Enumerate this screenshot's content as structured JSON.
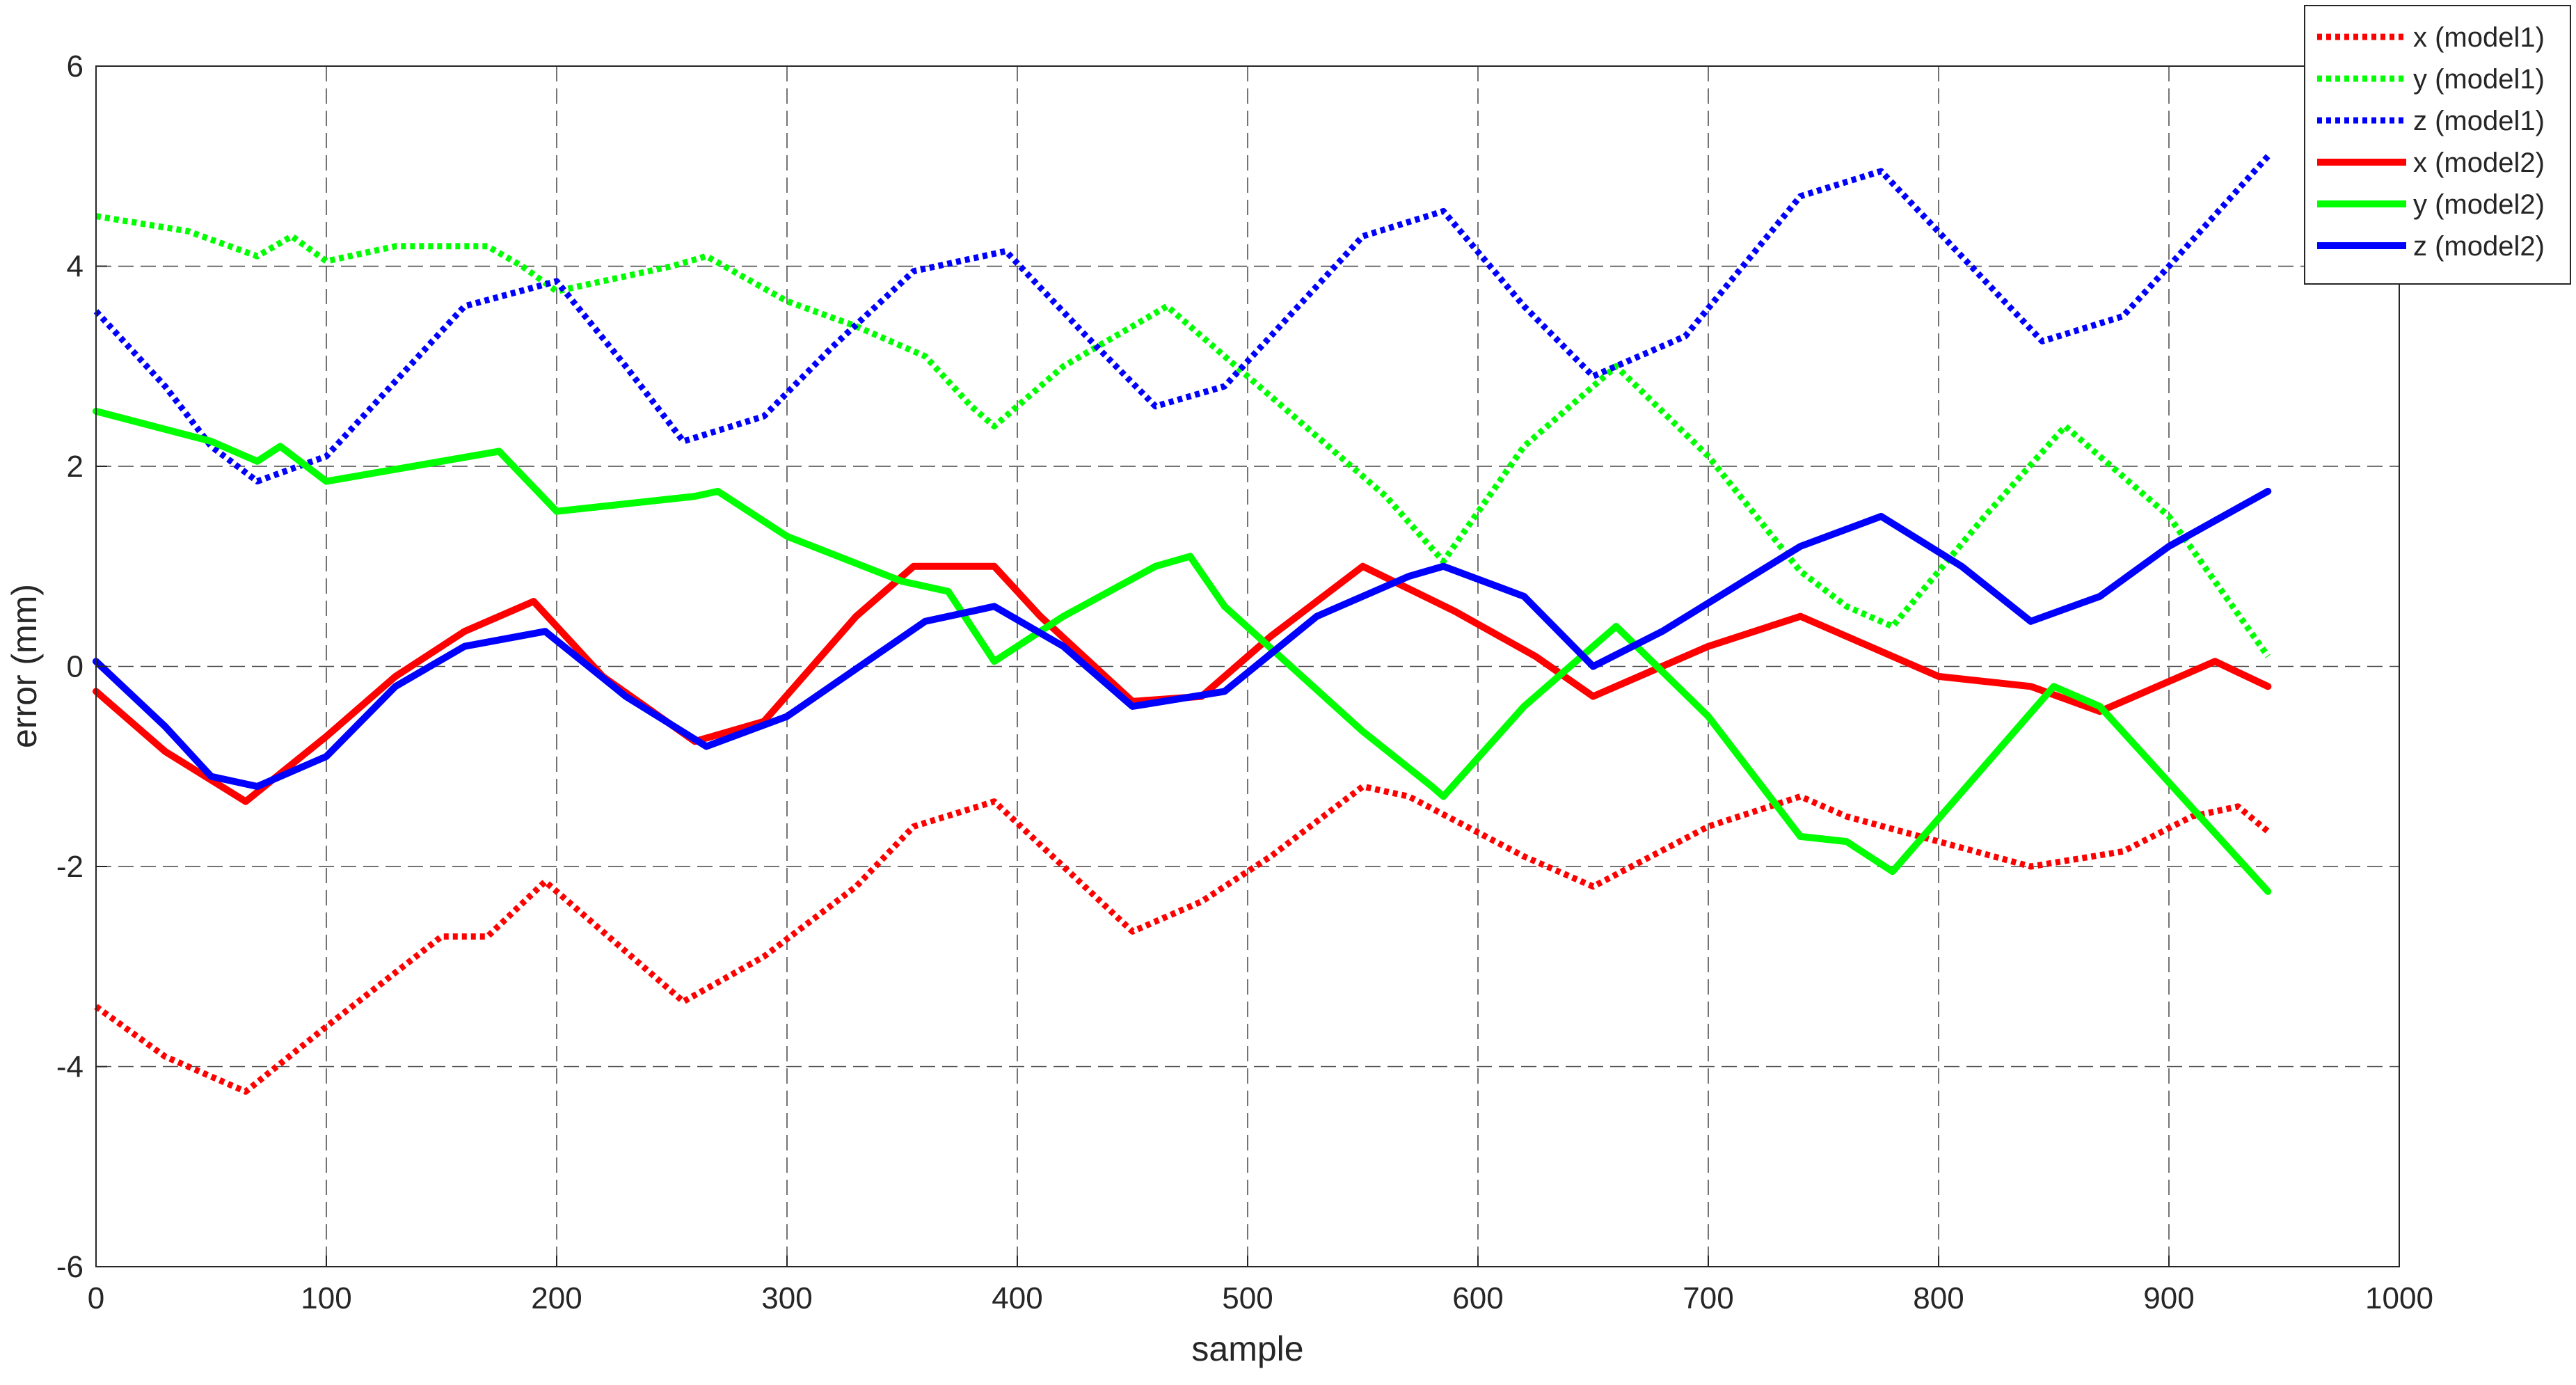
{
  "chart_data": {
    "type": "line",
    "title": "",
    "xlabel": "sample",
    "ylabel": "error (mm)",
    "xlim": [
      0,
      1000
    ],
    "ylim": [
      -6,
      6
    ],
    "xticks": [
      0,
      100,
      200,
      300,
      400,
      500,
      600,
      700,
      800,
      900,
      1000
    ],
    "yticks": [
      -6,
      -4,
      -2,
      0,
      2,
      4,
      6
    ],
    "xtick_labels": [
      "0",
      "100",
      "200",
      "300",
      "400",
      "500",
      "600",
      "700",
      "800",
      "900",
      "1000"
    ],
    "ytick_labels": [
      "-6",
      "-4",
      "-2",
      "0",
      "2",
      "4",
      "6"
    ],
    "grid": true,
    "legend_position": "top-right, outside plot area",
    "series": [
      {
        "name": "x (model1)",
        "color": "#ff0000",
        "style": "dotted",
        "x": [
          0,
          30,
          65,
          100,
          150,
          170,
          195,
          255,
          290,
          330,
          355,
          390,
          420,
          450,
          480,
          510,
          550,
          570,
          620,
          650,
          700,
          740,
          760,
          800,
          840,
          880,
          910,
          930,
          943
        ],
        "y": [
          -3.4,
          -3.9,
          -4.25,
          -3.6,
          -2.7,
          -2.7,
          -2.15,
          -3.35,
          -2.9,
          -2.2,
          -1.6,
          -1.35,
          -2.0,
          -2.65,
          -2.35,
          -1.9,
          -1.2,
          -1.3,
          -1.9,
          -2.2,
          -1.6,
          -1.3,
          -1.5,
          -1.75,
          -2.0,
          -1.85,
          -1.5,
          -1.4,
          -1.65
        ]
      },
      {
        "name": "y (model1)",
        "color": "#00ff00",
        "style": "dotted",
        "x": [
          0,
          40,
          70,
          85,
          100,
          130,
          170,
          185,
          200,
          250,
          265,
          300,
          330,
          360,
          380,
          390,
          420,
          465,
          490,
          540,
          560,
          585,
          620,
          660,
          700,
          740,
          760,
          780,
          820,
          855,
          900,
          943
        ],
        "y": [
          4.5,
          4.35,
          4.1,
          4.3,
          4.05,
          4.2,
          4.2,
          4.0,
          3.75,
          4.0,
          4.1,
          3.65,
          3.4,
          3.1,
          2.6,
          2.4,
          3.0,
          3.6,
          3.1,
          2.1,
          1.7,
          1.05,
          2.2,
          3.0,
          2.1,
          0.95,
          0.6,
          0.4,
          1.5,
          2.4,
          1.5,
          0.1
        ]
      },
      {
        "name": "z (model1)",
        "color": "#0000ff",
        "style": "dotted",
        "x": [
          0,
          30,
          50,
          70,
          100,
          140,
          160,
          200,
          230,
          255,
          290,
          320,
          355,
          395,
          430,
          460,
          490,
          550,
          585,
          620,
          650,
          690,
          740,
          775,
          810,
          845,
          880,
          900,
          943
        ],
        "y": [
          3.55,
          2.8,
          2.2,
          1.85,
          2.1,
          3.1,
          3.6,
          3.85,
          3.0,
          2.25,
          2.5,
          3.2,
          3.95,
          4.15,
          3.3,
          2.6,
          2.8,
          4.3,
          4.55,
          3.6,
          2.9,
          3.3,
          4.7,
          4.95,
          4.1,
          3.25,
          3.5,
          4.0,
          5.1
        ]
      },
      {
        "name": "x (model2)",
        "color": "#ff0000",
        "style": "solid",
        "x": [
          0,
          30,
          65,
          100,
          130,
          160,
          190,
          220,
          260,
          290,
          330,
          355,
          390,
          410,
          450,
          480,
          510,
          550,
          590,
          625,
          650,
          700,
          740,
          770,
          800,
          840,
          870,
          920,
          943
        ],
        "y": [
          -0.25,
          -0.85,
          -1.35,
          -0.7,
          -0.1,
          0.35,
          0.65,
          -0.1,
          -0.75,
          -0.55,
          0.5,
          1.0,
          1.0,
          0.5,
          -0.35,
          -0.3,
          0.3,
          1.0,
          0.55,
          0.1,
          -0.3,
          0.2,
          0.5,
          0.2,
          -0.1,
          -0.2,
          -0.45,
          0.05,
          -0.2
        ]
      },
      {
        "name": "y (model2)",
        "color": "#00ff00",
        "style": "solid",
        "x": [
          0,
          50,
          70,
          80,
          100,
          150,
          175,
          200,
          260,
          270,
          300,
          350,
          370,
          390,
          420,
          460,
          475,
          490,
          550,
          580,
          585,
          620,
          660,
          700,
          740,
          760,
          780,
          850,
          870,
          943
        ],
        "y": [
          2.55,
          2.25,
          2.05,
          2.2,
          1.85,
          2.05,
          2.15,
          1.55,
          1.7,
          1.75,
          1.3,
          0.85,
          0.75,
          0.05,
          0.5,
          1.0,
          1.1,
          0.6,
          -0.65,
          -1.2,
          -1.3,
          -0.4,
          0.4,
          -0.5,
          -1.7,
          -1.75,
          -2.05,
          -0.2,
          -0.4,
          -2.25
        ]
      },
      {
        "name": "z (model2)",
        "color": "#0000ff",
        "style": "solid",
        "x": [
          0,
          30,
          50,
          70,
          100,
          130,
          160,
          195,
          230,
          265,
          300,
          360,
          390,
          420,
          450,
          490,
          530,
          570,
          585,
          620,
          650,
          680,
          740,
          775,
          810,
          840,
          870,
          900,
          943
        ],
        "y": [
          0.05,
          -0.6,
          -1.1,
          -1.2,
          -0.9,
          -0.2,
          0.2,
          0.35,
          -0.3,
          -0.8,
          -0.5,
          0.45,
          0.6,
          0.2,
          -0.4,
          -0.25,
          0.5,
          0.9,
          1.0,
          0.7,
          0.0,
          0.35,
          1.2,
          1.5,
          1.0,
          0.45,
          0.7,
          1.2,
          1.75
        ]
      }
    ]
  }
}
